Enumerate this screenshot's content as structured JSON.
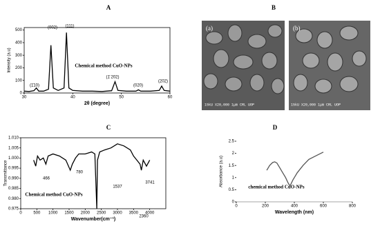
{
  "chart_data": [
    {
      "type": "line",
      "title": "A",
      "xlabel": "2θ (degree)",
      "ylabel": "Intensity (a.u)",
      "annotation": "Chemical method CuO-NPs",
      "peak_labels": [
        "(1̄10)",
        "(002)",
        "(111)",
        "(1̄ 202)",
        "(020)",
        "(202)"
      ],
      "x": [
        30,
        31,
        32,
        32.5,
        33,
        34,
        35,
        35.5,
        36,
        37,
        38.2,
        38.7,
        39.2,
        40,
        42,
        44,
        46,
        48,
        48.7,
        49.3,
        51,
        53,
        53.5,
        54,
        56,
        57.8,
        58.3,
        58.8,
        60
      ],
      "values": [
        15,
        12,
        18,
        40,
        15,
        15,
        30,
        380,
        40,
        20,
        40,
        480,
        40,
        20,
        15,
        15,
        12,
        18,
        90,
        20,
        15,
        15,
        25,
        15,
        15,
        20,
        55,
        20,
        15
      ],
      "color": "#000000",
      "xlim": [
        30,
        60
      ],
      "ylim": [
        0,
        520
      ],
      "xticks": [
        30,
        40,
        50,
        60
      ],
      "yticks": [
        0,
        100,
        200,
        300,
        400,
        500
      ],
      "grid": false,
      "frame": true
    },
    {
      "type": "line",
      "title": "C",
      "xlabel": "Wavenumber(cm⁻¹)",
      "ylabel": "Transmittance",
      "annotation": "Chemical method CuO-NPs",
      "peak_labels": [
        "466",
        "780",
        "1537",
        "2360",
        "3741"
      ],
      "x": [
        400,
        466,
        520,
        600,
        700,
        780,
        850,
        1000,
        1200,
        1400,
        1537,
        1600,
        1700,
        1800,
        2000,
        2200,
        2300,
        2360,
        2380,
        2450,
        2600,
        2800,
        3000,
        3200,
        3400,
        3500,
        3600,
        3700,
        3741,
        3800,
        3900,
        4000
      ],
      "values": [
        0.999,
        0.996,
        1.001,
        0.999,
        1.0,
        0.997,
        1.001,
        1.002,
        1.001,
        0.999,
        0.994,
        0.997,
        1.0,
        1.002,
        1.002,
        1.003,
        1.002,
        0.975,
        0.999,
        1.003,
        1.004,
        1.005,
        1.007,
        1.006,
        1.004,
        1.001,
        0.999,
        0.997,
        0.994,
        0.999,
        0.996,
        0.999
      ],
      "color": "#000000",
      "xlim": [
        0,
        4500
      ],
      "ylim": [
        0.975,
        1.01
      ],
      "xticks": [
        0,
        500,
        1000,
        1500,
        2000,
        2500,
        3000,
        3500,
        4000
      ],
      "yticks": [
        {
          "value": 1.01,
          "label": "1.010"
        },
        1.005,
        {
          "value": 1.0,
          "label": "1.000"
        },
        0.995,
        {
          "value": 0.99,
          "label": "0.990"
        },
        0.985,
        {
          "value": 0.98,
          "label": "0.980"
        },
        0.975
      ],
      "grid": false,
      "frame": true
    },
    {
      "type": "line",
      "title": "D",
      "xlabel": "Wavelength (nm)",
      "ylabel": "Absorbance (a.u)",
      "annotation": "chemical method CuO-NPs",
      "x": [
        210,
        230,
        250,
        265,
        280,
        300,
        320,
        340,
        355,
        370,
        390,
        420,
        460,
        500,
        550,
        600
      ],
      "values": [
        1.3,
        1.5,
        1.62,
        1.65,
        1.6,
        1.4,
        1.2,
        1.0,
        0.8,
        0.65,
        0.9,
        1.2,
        1.5,
        1.75,
        1.9,
        2.05
      ],
      "color": "#555555",
      "xlim": [
        0,
        800
      ],
      "ylim": [
        0,
        2.5
      ],
      "xticks": [
        0,
        200,
        400,
        600,
        800
      ],
      "yticks": [
        0,
        0.5,
        1,
        1.5,
        2,
        2.5
      ],
      "grid": false,
      "frame": false
    }
  ],
  "panel_b": {
    "title": "B",
    "images": [
      {
        "label": "(a)",
        "caption": "15kU X20,000 1μm CRL UOP"
      },
      {
        "label": "(b)",
        "caption": "15kU X20,000 1μm CRL UOP"
      }
    ]
  }
}
